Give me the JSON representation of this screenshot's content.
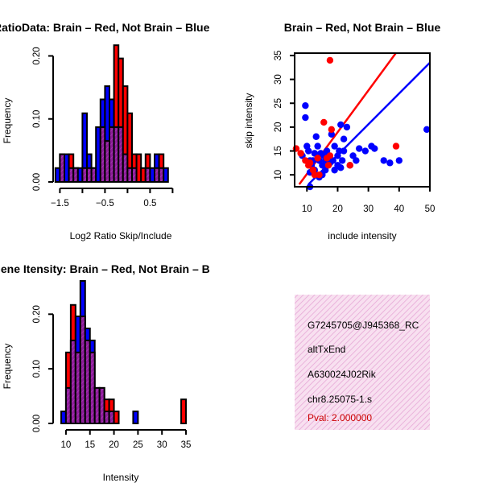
{
  "colors": {
    "red": "#ff0000",
    "blue": "#0000ff",
    "purple": "#a020f0",
    "overlap_purple": "#8e1c9a",
    "hatch_pink": "#f3c8e6",
    "pval": "#cc0000"
  },
  "chart_data": [
    {
      "type": "bar",
      "subtype": "overlaid-histogram",
      "title": "RatioData: Brain – Red, Not Brain – Blue",
      "xlabel": "Log2 Ratio Skip/Include",
      "ylabel": "Frequency",
      "xticks": [
        -1.5,
        -0.5,
        0.5
      ],
      "xtick_labels": [
        "−1.5",
        "−0.5",
        "0.5"
      ],
      "yticks": [
        0.0,
        0.1,
        0.2
      ],
      "ytick_labels": [
        "0.00",
        "0.10",
        "0.20"
      ],
      "xlim": [
        -1.65,
        1.35
      ],
      "ylim": [
        0,
        0.23
      ],
      "bin_width": 0.1,
      "bins_start": [
        -1.6,
        -1.5,
        -1.4,
        -1.3,
        -1.2,
        -1.1,
        -1.0,
        -0.9,
        -0.8,
        -0.7,
        -0.6,
        -0.5,
        -0.4,
        -0.3,
        -0.2,
        -0.1,
        0.0,
        0.1,
        0.2,
        0.3,
        0.4,
        0.5,
        0.6,
        0.7,
        0.8,
        0.9,
        1.0
      ],
      "series": [
        {
          "name": "Not Brain",
          "color": "blue",
          "values": [
            0.022,
            0.044,
            0.044,
            0.022,
            0.022,
            0.022,
            0.109,
            0.044,
            0.022,
            0.087,
            0.131,
            0.152,
            0.131,
            0.087,
            0.087,
            0.044,
            0.022,
            0.022,
            0.0,
            0.0,
            0.022,
            0.022,
            0.044,
            0.022,
            0.022,
            0.0,
            0.0
          ]
        },
        {
          "name": "Brain",
          "color": "red",
          "values": [
            0.0,
            0.044,
            0.0,
            0.044,
            0.022,
            0.0,
            0.022,
            0.022,
            0.022,
            0.0,
            0.087,
            0.065,
            0.087,
            0.217,
            0.196,
            0.152,
            0.109,
            0.044,
            0.044,
            0.022,
            0.044,
            0.0,
            0.022,
            0.044,
            0.0,
            0.0,
            0.0
          ]
        }
      ]
    },
    {
      "type": "scatter",
      "title": "Brain – Red, Not Brain – Blue",
      "xlabel": "include intensity",
      "ylabel": "skip intensity",
      "xticks": [
        10,
        20,
        30,
        40,
        50
      ],
      "yticks": [
        10,
        15,
        20,
        25,
        30,
        35
      ],
      "xlim": [
        6,
        50
      ],
      "ylim": [
        7.5,
        35.5
      ],
      "series": [
        {
          "name": "Not Brain",
          "color": "blue",
          "points": [
            [
              8.5,
              14
            ],
            [
              9.5,
              24.5
            ],
            [
              9.5,
              22
            ],
            [
              10,
              16
            ],
            [
              10.5,
              15
            ],
            [
              11,
              13
            ],
            [
              11,
              10.5
            ],
            [
              11,
              7.5
            ],
            [
              11.5,
              12
            ],
            [
              12,
              13
            ],
            [
              12.5,
              14.5
            ],
            [
              12.5,
              11
            ],
            [
              13,
              18
            ],
            [
              13,
              10
            ],
            [
              13.5,
              16
            ],
            [
              14,
              13
            ],
            [
              14,
              9.5
            ],
            [
              14.5,
              14.5
            ],
            [
              15,
              12
            ],
            [
              15,
              10
            ],
            [
              15.5,
              14
            ],
            [
              16,
              11
            ],
            [
              16,
              13
            ],
            [
              16.5,
              15
            ],
            [
              17,
              14
            ],
            [
              17.5,
              12.5
            ],
            [
              18,
              18.5
            ],
            [
              18.5,
              13
            ],
            [
              19,
              11
            ],
            [
              19,
              16
            ],
            [
              20,
              14
            ],
            [
              20,
              12
            ],
            [
              20.5,
              15
            ],
            [
              21,
              20.5
            ],
            [
              21,
              11.5
            ],
            [
              21.5,
              13
            ],
            [
              22,
              15
            ],
            [
              22,
              17.5
            ],
            [
              23,
              20
            ],
            [
              24,
              12
            ],
            [
              25,
              14
            ],
            [
              26,
              13
            ],
            [
              27,
              15.5
            ],
            [
              29,
              15
            ],
            [
              31,
              16
            ],
            [
              32,
              15.5
            ],
            [
              35,
              13
            ],
            [
              37,
              12.5
            ],
            [
              40,
              13
            ],
            [
              49,
              19.5
            ]
          ]
        },
        {
          "name": "Brain",
          "color": "red",
          "points": [
            [
              6.5,
              15.5
            ],
            [
              8,
              14.5
            ],
            [
              9.5,
              13
            ],
            [
              10.5,
              12
            ],
            [
              11,
              12.5
            ],
            [
              12,
              11
            ],
            [
              12.5,
              10
            ],
            [
              13.5,
              13.5
            ],
            [
              14,
              10
            ],
            [
              15.5,
              21
            ],
            [
              16.5,
              13.5
            ],
            [
              17,
              12
            ],
            [
              17.5,
              34
            ],
            [
              17.5,
              14
            ],
            [
              18,
              19.5
            ],
            [
              24,
              12
            ],
            [
              39,
              16
            ]
          ]
        }
      ],
      "fit_lines": [
        {
          "name": "Brain fit",
          "color": "red",
          "from": [
            7.5,
            8.0
          ],
          "to": [
            39.5,
            36.0
          ]
        },
        {
          "name": "Not Brain fit",
          "color": "blue",
          "from": [
            10.5,
            8.0
          ],
          "to": [
            50,
            33.5
          ]
        }
      ]
    },
    {
      "type": "bar",
      "subtype": "overlaid-histogram",
      "title": "Gene Itensity: Brain – Red, Not Brain – B",
      "xlabel": "Intensity",
      "ylabel": "Frequency",
      "xticks": [
        10,
        15,
        20,
        25,
        30,
        35
      ],
      "yticks": [
        0.0,
        0.1,
        0.2
      ],
      "ytick_labels": [
        "0.00",
        "0.10",
        "0.20"
      ],
      "xlim": [
        8,
        35.5
      ],
      "ylim": [
        0,
        0.255
      ],
      "bin_width": 1,
      "bins_start": [
        9,
        10,
        11,
        12,
        13,
        14,
        15,
        16,
        17,
        18,
        19,
        20,
        21,
        22,
        23,
        24,
        25,
        26,
        27,
        28,
        29,
        30,
        31,
        32,
        33,
        34
      ],
      "series": [
        {
          "name": "Not Brain",
          "color": "blue",
          "values": [
            0.022,
            0.065,
            0.152,
            0.196,
            0.261,
            0.174,
            0.152,
            0.065,
            0.065,
            0.022,
            0.022,
            0.0,
            0.0,
            0.0,
            0.0,
            0.022,
            0.0,
            0.0,
            0.0,
            0.0,
            0.0,
            0.0,
            0.0,
            0.0,
            0.0,
            0.0
          ]
        },
        {
          "name": "Brain",
          "color": "red",
          "values": [
            0.0,
            0.13,
            0.217,
            0.13,
            0.196,
            0.152,
            0.13,
            0.065,
            0.065,
            0.044,
            0.044,
            0.022,
            0.0,
            0.0,
            0.0,
            0.0,
            0.0,
            0.0,
            0.0,
            0.0,
            0.0,
            0.0,
            0.0,
            0.0,
            0.0,
            0.044
          ]
        }
      ]
    }
  ],
  "info_panel": {
    "probe_id": "G7245705@J945368_RC",
    "event_type": "altTxEnd",
    "gene_name": "A630024J02Rik",
    "location": "chr8.25075-1.s",
    "pval": "Pval: 2.000000"
  }
}
